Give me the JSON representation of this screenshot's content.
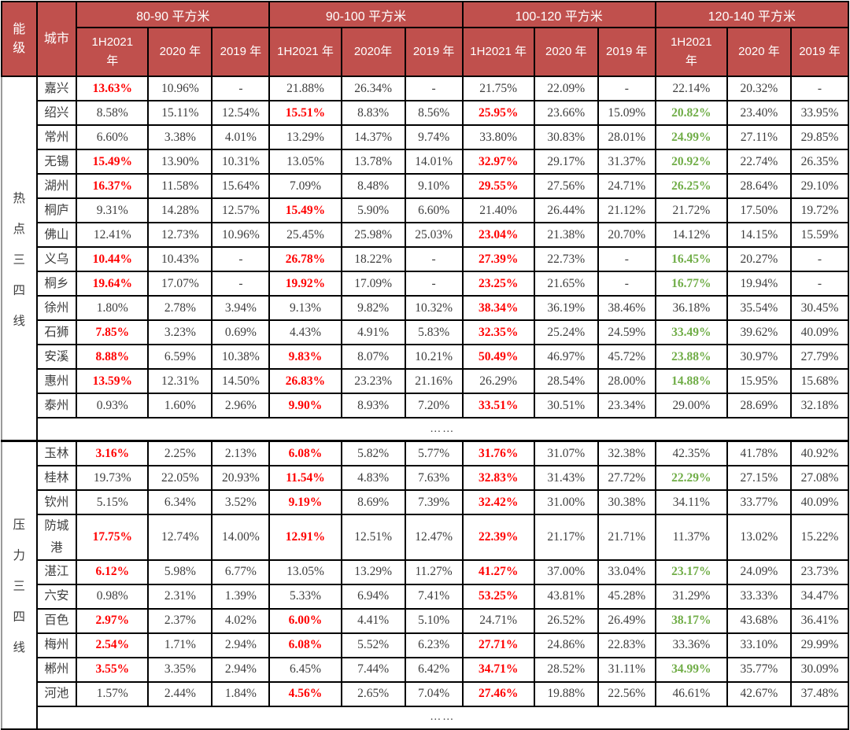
{
  "colors": {
    "header_bg": "#c0504d",
    "header_text": "#ffffff",
    "value_red": "#ff0000",
    "value_green": "#70ad47",
    "value_text": "#3d3d3d",
    "border": "#000000"
  },
  "chart_data": {
    "type": "table",
    "corner": {
      "tier": "能级",
      "city": "城市"
    },
    "column_groups": [
      {
        "label": "80-90 平方米",
        "years": [
          "1H2021\n年",
          "2020 年",
          "2019 年"
        ]
      },
      {
        "label": "90-100 平方米",
        "years": [
          "1H2021 年",
          "2020年",
          "2019 年"
        ]
      },
      {
        "label": "100-120 平方米",
        "years": [
          "1H2021 年",
          "2020 年",
          "2019 年"
        ]
      },
      {
        "label": "120-140 平方米",
        "years": [
          "1H2021\n年",
          "2020 年",
          "2019 年"
        ]
      }
    ],
    "groups": [
      {
        "tier": "热点三四线",
        "ellipsis": "……",
        "rows": [
          {
            "city": "嘉兴",
            "values": [
              "13.63%",
              "10.96%",
              "-",
              "21.88%",
              "26.34%",
              "-",
              "21.75%",
              "22.09%",
              "-",
              "22.14%",
              "20.32%",
              "-"
            ],
            "styles": [
              "r",
              "",
              "",
              "",
              "",
              "",
              "",
              "",
              "",
              "",
              "",
              ""
            ]
          },
          {
            "city": "绍兴",
            "values": [
              "8.58%",
              "15.11%",
              "12.54%",
              "15.51%",
              "8.83%",
              "8.56%",
              "25.95%",
              "23.66%",
              "15.09%",
              "20.82%",
              "23.40%",
              "33.95%"
            ],
            "styles": [
              "",
              "",
              "",
              "r",
              "",
              "",
              "r",
              "",
              "",
              "g",
              "",
              ""
            ]
          },
          {
            "city": "常州",
            "values": [
              "6.60%",
              "3.38%",
              "4.01%",
              "13.29%",
              "14.37%",
              "9.74%",
              "33.80%",
              "30.83%",
              "28.01%",
              "24.99%",
              "27.11%",
              "29.85%"
            ],
            "styles": [
              "",
              "",
              "",
              "",
              "",
              "",
              "",
              "",
              "",
              "g",
              "",
              ""
            ]
          },
          {
            "city": "无锡",
            "values": [
              "15.49%",
              "13.90%",
              "10.31%",
              "13.05%",
              "13.78%",
              "14.01%",
              "32.97%",
              "29.17%",
              "31.37%",
              "20.92%",
              "22.74%",
              "26.35%"
            ],
            "styles": [
              "r",
              "",
              "",
              "",
              "",
              "",
              "r",
              "",
              "",
              "g",
              "",
              ""
            ]
          },
          {
            "city": "湖州",
            "values": [
              "16.37%",
              "11.58%",
              "15.64%",
              "7.09%",
              "8.48%",
              "9.10%",
              "29.55%",
              "27.56%",
              "24.71%",
              "26.25%",
              "28.64%",
              "29.10%"
            ],
            "styles": [
              "r",
              "",
              "",
              "",
              "",
              "",
              "r",
              "",
              "",
              "g",
              "",
              ""
            ]
          },
          {
            "city": "桐庐",
            "values": [
              "9.31%",
              "14.28%",
              "12.57%",
              "15.49%",
              "5.90%",
              "6.60%",
              "21.40%",
              "26.44%",
              "21.12%",
              "21.72%",
              "17.50%",
              "19.72%"
            ],
            "styles": [
              "",
              "",
              "",
              "r",
              "",
              "",
              "",
              "",
              "",
              "",
              "",
              ""
            ]
          },
          {
            "city": "佛山",
            "values": [
              "12.41%",
              "12.73%",
              "10.96%",
              "25.45%",
              "25.98%",
              "25.03%",
              "23.04%",
              "21.38%",
              "20.70%",
              "14.12%",
              "14.15%",
              "15.59%"
            ],
            "styles": [
              "",
              "",
              "",
              "",
              "",
              "",
              "r",
              "",
              "",
              "",
              "",
              ""
            ]
          },
          {
            "city": "义乌",
            "values": [
              "10.44%",
              "10.43%",
              "-",
              "26.78%",
              "18.22%",
              "-",
              "27.39%",
              "22.73%",
              "-",
              "16.45%",
              "20.27%",
              "-"
            ],
            "styles": [
              "r",
              "",
              "",
              "r",
              "",
              "",
              "r",
              "",
              "",
              "g",
              "",
              ""
            ]
          },
          {
            "city": "桐乡",
            "values": [
              "19.64%",
              "17.07%",
              "-",
              "19.92%",
              "17.09%",
              "-",
              "23.25%",
              "21.65%",
              "-",
              "16.77%",
              "19.94%",
              "-"
            ],
            "styles": [
              "r",
              "",
              "",
              "r",
              "",
              "",
              "r",
              "",
              "",
              "g",
              "",
              ""
            ]
          },
          {
            "city": "徐州",
            "values": [
              "1.80%",
              "2.78%",
              "3.94%",
              "9.13%",
              "9.82%",
              "10.32%",
              "38.34%",
              "36.19%",
              "38.46%",
              "36.18%",
              "35.54%",
              "30.45%"
            ],
            "styles": [
              "",
              "",
              "",
              "",
              "",
              "",
              "r",
              "",
              "",
              "",
              "",
              ""
            ]
          },
          {
            "city": "石狮",
            "values": [
              "7.85%",
              "3.23%",
              "0.69%",
              "4.43%",
              "4.91%",
              "5.83%",
              "32.35%",
              "25.24%",
              "24.59%",
              "33.49%",
              "39.62%",
              "40.09%"
            ],
            "styles": [
              "r",
              "",
              "",
              "",
              "",
              "",
              "r",
              "",
              "",
              "g",
              "",
              ""
            ]
          },
          {
            "city": "安溪",
            "values": [
              "8.88%",
              "6.59%",
              "10.38%",
              "9.83%",
              "8.07%",
              "10.21%",
              "50.49%",
              "46.97%",
              "45.72%",
              "23.88%",
              "30.97%",
              "27.79%"
            ],
            "styles": [
              "r",
              "",
              "",
              "r",
              "",
              "",
              "r",
              "",
              "",
              "g",
              "",
              ""
            ]
          },
          {
            "city": "惠州",
            "values": [
              "13.59%",
              "12.31%",
              "14.50%",
              "26.83%",
              "23.23%",
              "21.16%",
              "26.29%",
              "28.54%",
              "28.00%",
              "14.88%",
              "15.95%",
              "15.68%"
            ],
            "styles": [
              "r",
              "",
              "",
              "r",
              "",
              "",
              "",
              "",
              "",
              "g",
              "",
              ""
            ]
          },
          {
            "city": "泰州",
            "values": [
              "0.93%",
              "1.60%",
              "2.96%",
              "9.90%",
              "8.93%",
              "7.20%",
              "33.51%",
              "30.51%",
              "23.34%",
              "29.00%",
              "28.69%",
              "32.18%"
            ],
            "styles": [
              "",
              "",
              "",
              "r",
              "",
              "",
              "r",
              "",
              "",
              "",
              "",
              ""
            ]
          }
        ]
      },
      {
        "tier": "压力三四线",
        "ellipsis": "……",
        "rows": [
          {
            "city": "玉林",
            "values": [
              "3.16%",
              "2.25%",
              "2.13%",
              "6.08%",
              "5.82%",
              "5.77%",
              "31.76%",
              "31.07%",
              "32.38%",
              "42.35%",
              "41.78%",
              "40.92%"
            ],
            "styles": [
              "r",
              "",
              "",
              "r",
              "",
              "",
              "r",
              "",
              "",
              "",
              "",
              ""
            ]
          },
          {
            "city": "桂林",
            "values": [
              "19.73%",
              "22.05%",
              "20.93%",
              "11.54%",
              "4.83%",
              "7.63%",
              "32.83%",
              "31.43%",
              "27.72%",
              "22.29%",
              "27.15%",
              "27.08%"
            ],
            "styles": [
              "",
              "",
              "",
              "r",
              "",
              "",
              "r",
              "",
              "",
              "g",
              "",
              ""
            ]
          },
          {
            "city": "钦州",
            "values": [
              "5.15%",
              "6.34%",
              "3.52%",
              "9.19%",
              "8.69%",
              "7.39%",
              "32.42%",
              "31.00%",
              "30.38%",
              "34.11%",
              "33.77%",
              "40.09%"
            ],
            "styles": [
              "",
              "",
              "",
              "r",
              "",
              "",
              "r",
              "",
              "",
              "",
              "",
              ""
            ]
          },
          {
            "city": "防城港",
            "values": [
              "17.75%",
              "12.74%",
              "14.00%",
              "12.91%",
              "12.51%",
              "12.47%",
              "22.39%",
              "21.17%",
              "21.71%",
              "11.37%",
              "13.02%",
              "15.22%"
            ],
            "styles": [
              "r",
              "",
              "",
              "r",
              "",
              "",
              "r",
              "",
              "",
              "",
              "",
              ""
            ]
          },
          {
            "city": "湛江",
            "values": [
              "6.12%",
              "5.98%",
              "6.77%",
              "13.05%",
              "13.29%",
              "11.27%",
              "41.27%",
              "37.00%",
              "33.04%",
              "23.17%",
              "24.09%",
              "23.73%"
            ],
            "styles": [
              "r",
              "",
              "",
              "",
              "",
              "",
              "r",
              "",
              "",
              "g",
              "",
              ""
            ]
          },
          {
            "city": "六安",
            "values": [
              "0.98%",
              "2.31%",
              "1.39%",
              "5.33%",
              "6.94%",
              "7.41%",
              "53.25%",
              "43.81%",
              "45.28%",
              "31.29%",
              "33.33%",
              "34.47%"
            ],
            "styles": [
              "",
              "",
              "",
              "",
              "",
              "",
              "r",
              "",
              "",
              "",
              "",
              ""
            ]
          },
          {
            "city": "百色",
            "values": [
              "2.97%",
              "2.37%",
              "4.02%",
              "6.00%",
              "4.41%",
              "5.10%",
              "24.71%",
              "26.52%",
              "26.49%",
              "38.17%",
              "43.68%",
              "36.41%"
            ],
            "styles": [
              "r",
              "",
              "",
              "r",
              "",
              "",
              "",
              "",
              "",
              "g",
              "",
              ""
            ]
          },
          {
            "city": "梅州",
            "values": [
              "2.54%",
              "1.71%",
              "2.94%",
              "6.08%",
              "5.52%",
              "6.23%",
              "27.71%",
              "24.86%",
              "22.83%",
              "33.36%",
              "33.10%",
              "29.99%"
            ],
            "styles": [
              "r",
              "",
              "",
              "r",
              "",
              "",
              "r",
              "",
              "",
              "",
              "",
              ""
            ]
          },
          {
            "city": "郴州",
            "values": [
              "3.55%",
              "3.35%",
              "2.94%",
              "6.45%",
              "7.44%",
              "6.42%",
              "34.71%",
              "28.52%",
              "31.11%",
              "34.99%",
              "35.77%",
              "30.09%"
            ],
            "styles": [
              "r",
              "",
              "",
              "",
              "",
              "",
              "r",
              "",
              "",
              "g",
              "",
              ""
            ]
          },
          {
            "city": "河池",
            "values": [
              "1.57%",
              "2.44%",
              "1.84%",
              "4.56%",
              "2.65%",
              "7.04%",
              "27.46%",
              "19.88%",
              "22.56%",
              "46.61%",
              "42.67%",
              "37.48%"
            ],
            "styles": [
              "",
              "",
              "",
              "r",
              "",
              "",
              "r",
              "",
              "",
              "",
              "",
              ""
            ]
          }
        ]
      }
    ]
  }
}
